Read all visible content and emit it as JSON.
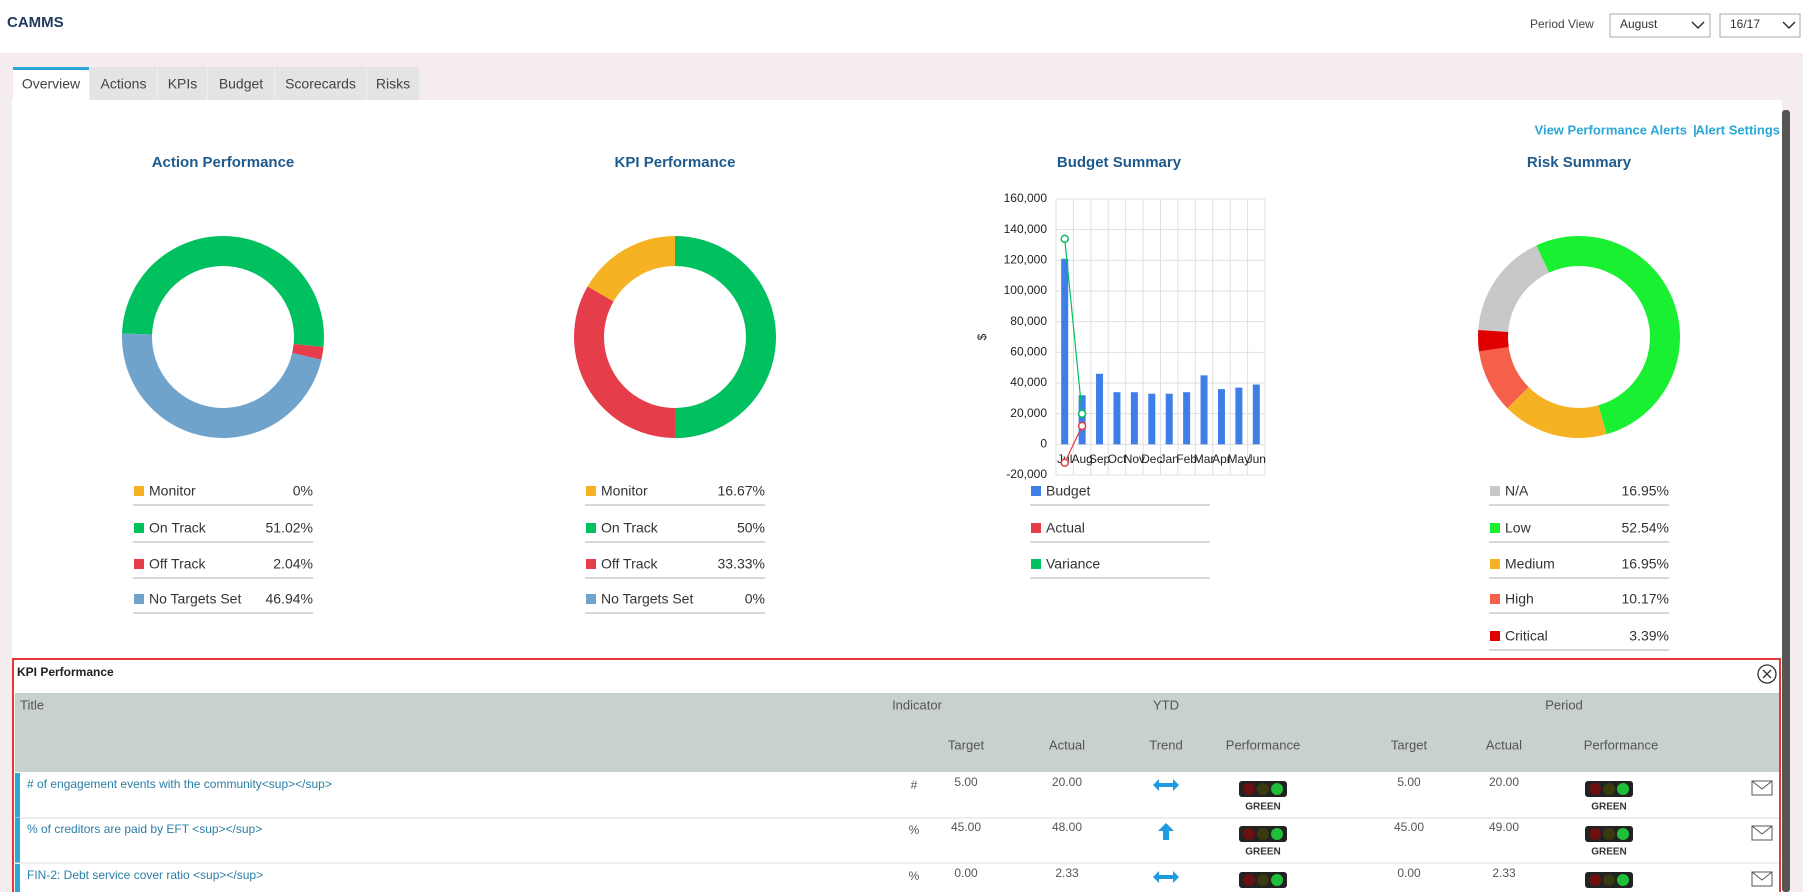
{
  "header": {
    "app": "CAMMS",
    "period_label": "Period View",
    "month": "August",
    "year": "16/17"
  },
  "tabs": [
    "Overview",
    "Actions",
    "KPIs",
    "Budget",
    "Scorecards",
    "Risks"
  ],
  "links": [
    "View Performance Alerts",
    "|",
    "Alert Settings"
  ],
  "chart_data": [
    {
      "type": "pie",
      "title": "Action Performance",
      "categories": [
        "Monitor",
        "On Track",
        "Off Track",
        "No Targets Set"
      ],
      "values": [
        0,
        51.02,
        2.04,
        46.94
      ],
      "value_labels": [
        "0%",
        "51.02%",
        "2.04%",
        "46.94%"
      ],
      "colors": [
        "#f5b324",
        "#00c060",
        "#e63d4a",
        "#6fa3cc"
      ]
    },
    {
      "type": "pie",
      "title": "KPI Performance",
      "categories": [
        "Monitor",
        "On Track",
        "Off Track",
        "No Targets Set"
      ],
      "values": [
        16.67,
        50,
        33.33,
        0
      ],
      "value_labels": [
        "16.67%",
        "50%",
        "33.33%",
        "0%"
      ],
      "colors": [
        "#f5b324",
        "#00c060",
        "#e63d4a",
        "#6fa3cc"
      ]
    },
    {
      "type": "bar",
      "title": "Budget Summary",
      "y_label": "$",
      "categories": [
        "Jul",
        "Aug",
        "Sep",
        "Oct",
        "Nov",
        "Dec",
        "Jan",
        "Feb",
        "Mar",
        "Apr",
        "May",
        "Jun"
      ],
      "series": [
        {
          "name": "Budget",
          "color": "#3d7fe6",
          "values": [
            121000,
            32000,
            46000,
            34000,
            34000,
            33000,
            33000,
            34000,
            45000,
            36000,
            37000,
            39000
          ]
        },
        {
          "name": "Actual",
          "color": "#e63d4a",
          "values": [
            -12000,
            12000,
            null,
            null,
            null,
            null,
            null,
            null,
            null,
            null,
            null,
            null
          ]
        },
        {
          "name": "Variance",
          "color": "#00c060",
          "values": [
            134000,
            20000,
            null,
            null,
            null,
            null,
            null,
            null,
            null,
            null,
            null,
            null
          ]
        }
      ],
      "ylim": [
        -20000,
        160000
      ],
      "yticks": [
        {
          "value": -20000,
          "label": "-20,000"
        },
        0,
        {
          "value": 20000,
          "label": "20,000"
        },
        {
          "value": 40000,
          "label": "40,000"
        },
        {
          "value": 60000,
          "label": "60,000"
        },
        {
          "value": 80000,
          "label": "80,000"
        },
        {
          "value": 100000,
          "label": "100,000"
        },
        {
          "value": 120000,
          "label": "120,000"
        },
        {
          "value": 140000,
          "label": "140,000"
        },
        {
          "value": 160000,
          "label": "160,000"
        }
      ],
      "grid": true
    },
    {
      "type": "pie",
      "title": "Risk Summary",
      "categories": [
        "N/A",
        "Low",
        "Medium",
        "High",
        "Critical"
      ],
      "values": [
        16.95,
        52.54,
        16.95,
        10.17,
        3.39
      ],
      "value_labels": [
        "16.95%",
        "52.54%",
        "16.95%",
        "10.17%",
        "3.39%"
      ],
      "colors": [
        "#c8c8c8",
        "#19f032",
        "#f5b324",
        "#f5604a",
        "#e00000"
      ]
    }
  ],
  "table": {
    "title": "KPI Performance",
    "group_headers": [
      "Title",
      "Indicator",
      "YTD",
      "Period"
    ],
    "headers": [
      "Target",
      "Actual",
      "Trend",
      "Performance",
      "Target",
      "Actual",
      "Performance"
    ],
    "rows": [
      {
        "title": "# of engagement events with the community<sup></sup>",
        "indicator": "#",
        "ytd_target": "5.00",
        "ytd_actual": "20.00",
        "ytd_performance": "GREEN",
        "period_target": "5.00",
        "period_actual": "20.00",
        "period_performance": "GREEN"
      },
      {
        "title": "% of creditors are paid by EFT <sup></sup>",
        "indicator": "%",
        "ytd_target": "45.00",
        "ytd_actual": "48.00",
        "ytd_performance": "GREEN",
        "period_target": "45.00",
        "period_actual": "49.00",
        "period_performance": "GREEN"
      },
      {
        "title": "FIN-2: Debt service cover ratio <sup></sup>",
        "indicator": "%",
        "ytd_target": "0.00",
        "ytd_actual": "2.33",
        "period_target": "0.00",
        "period_actual": "2.33"
      }
    ]
  }
}
